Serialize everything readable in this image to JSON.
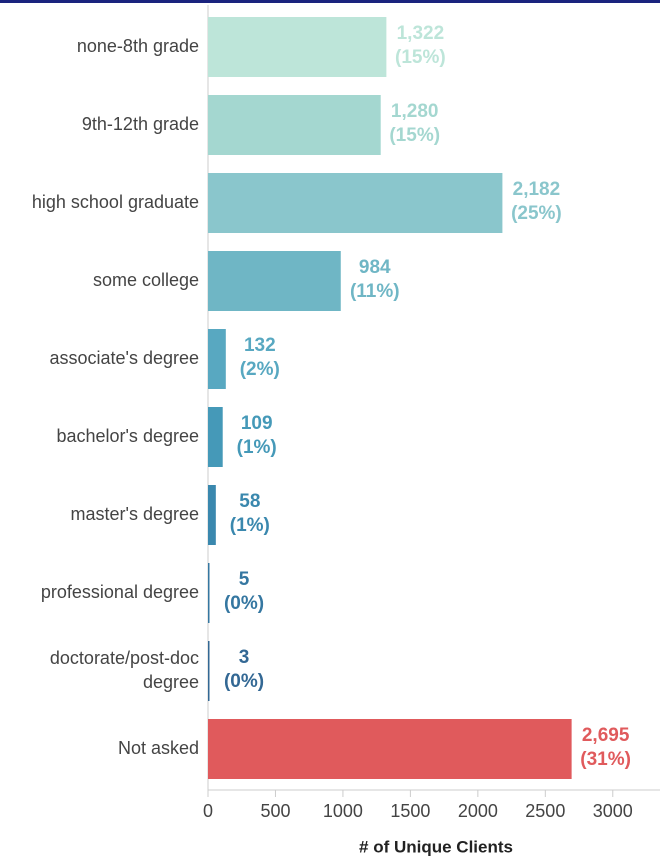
{
  "chart_data": {
    "type": "hbar",
    "categories": [
      "none-8th grade",
      "9th-12th grade",
      "high school graduate",
      "some college",
      "associate's degree",
      "bachelor's degree",
      "master's degree",
      "professional degree",
      "doctorate/post-doc degree",
      "Not asked"
    ],
    "values": [
      1322,
      1280,
      2182,
      984,
      132,
      109,
      58,
      5,
      3,
      2695
    ],
    "value_labels": [
      "1,322",
      "1,280",
      "2,182",
      "984",
      "132",
      "109",
      "58",
      "5",
      "3",
      "2,695"
    ],
    "percent_labels": [
      "(15%)",
      "(15%)",
      "(25%)",
      "(11%)",
      "(2%)",
      "(1%)",
      "(1%)",
      "(0%)",
      "(0%)",
      "(31%)"
    ],
    "colors": [
      "#bde5d9",
      "#a4d7d0",
      "#8ac6cc",
      "#6fb6c5",
      "#58a8c1",
      "#4599b8",
      "#3a88ae",
      "#3577a1",
      "#336894",
      "#e05a5c"
    ],
    "x_label": "# of Unique Clients",
    "xlim": [
      0,
      3350
    ],
    "xticks": [
      0,
      500,
      1000,
      1500,
      2000,
      2500,
      3000
    ]
  }
}
